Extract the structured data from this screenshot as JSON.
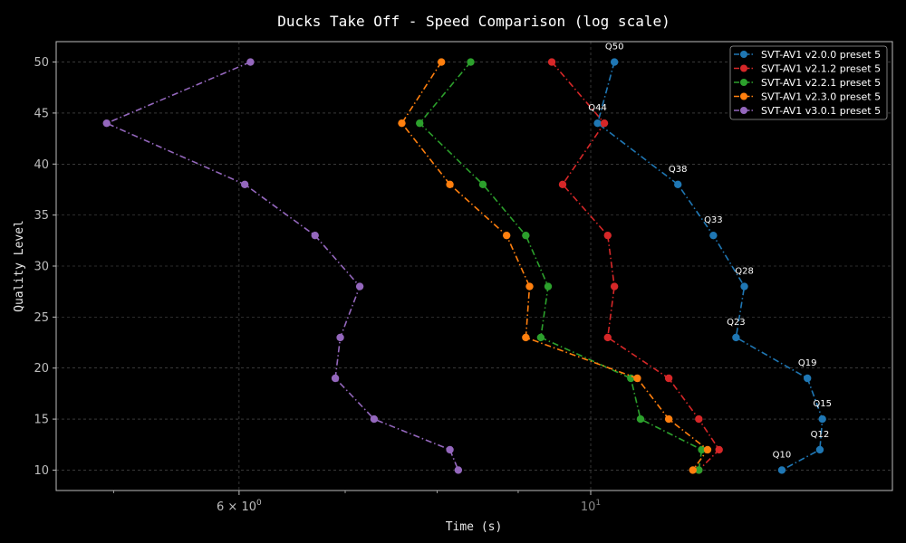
{
  "chart_data": {
    "type": "line",
    "title": "Ducks Take Off - Speed Comparison (log scale)",
    "xlabel": "Time (s)",
    "ylabel": "Quality Level",
    "x_scale": "log",
    "xlim": [
      4.6,
      15.5
    ],
    "ylim": [
      8,
      52
    ],
    "x_ticks": [
      {
        "value": 6,
        "label": "6 × 10^0",
        "muted": false
      },
      {
        "value": 10,
        "label": "10^1",
        "muted": true
      }
    ],
    "x_minor_ticks": [
      5,
      7,
      8,
      9
    ],
    "y_ticks": [
      10,
      15,
      20,
      25,
      30,
      35,
      40,
      45,
      50
    ],
    "grid": true,
    "legend_position": "top-right",
    "series": [
      {
        "name": "SVT-AV1 v2.0.0 preset 5",
        "color": "#1f77b4",
        "points": [
          {
            "x": 10.35,
            "y": 50
          },
          {
            "x": 10.1,
            "y": 44
          },
          {
            "x": 11.35,
            "y": 38
          },
          {
            "x": 11.95,
            "y": 33
          },
          {
            "x": 12.5,
            "y": 28
          },
          {
            "x": 12.35,
            "y": 23
          },
          {
            "x": 13.7,
            "y": 19
          },
          {
            "x": 14.0,
            "y": 15
          },
          {
            "x": 13.95,
            "y": 12
          },
          {
            "x": 13.2,
            "y": 10
          }
        ]
      },
      {
        "name": "SVT-AV1 v2.1.2 preset 5",
        "color": "#d62728",
        "points": [
          {
            "x": 9.45,
            "y": 50
          },
          {
            "x": 10.2,
            "y": 44
          },
          {
            "x": 9.6,
            "y": 38
          },
          {
            "x": 10.25,
            "y": 33
          },
          {
            "x": 10.35,
            "y": 28
          },
          {
            "x": 10.25,
            "y": 23
          },
          {
            "x": 11.2,
            "y": 19
          },
          {
            "x": 11.7,
            "y": 15
          },
          {
            "x": 12.05,
            "y": 12
          },
          {
            "x": 11.7,
            "y": 10
          }
        ]
      },
      {
        "name": "SVT-AV1 v2.2.1 preset 5",
        "color": "#2ca02c",
        "points": [
          {
            "x": 8.4,
            "y": 50
          },
          {
            "x": 7.8,
            "y": 44
          },
          {
            "x": 8.55,
            "y": 38
          },
          {
            "x": 9.1,
            "y": 33
          },
          {
            "x": 9.4,
            "y": 28
          },
          {
            "x": 9.3,
            "y": 23
          },
          {
            "x": 10.6,
            "y": 19
          },
          {
            "x": 10.75,
            "y": 15
          },
          {
            "x": 11.75,
            "y": 12
          },
          {
            "x": 11.7,
            "y": 10
          }
        ]
      },
      {
        "name": "SVT-AV1 v2.3.0 preset 5",
        "color": "#ff7f0e",
        "points": [
          {
            "x": 8.05,
            "y": 50
          },
          {
            "x": 7.6,
            "y": 44
          },
          {
            "x": 8.15,
            "y": 38
          },
          {
            "x": 8.85,
            "y": 33
          },
          {
            "x": 9.15,
            "y": 28
          },
          {
            "x": 9.1,
            "y": 23
          },
          {
            "x": 10.7,
            "y": 19
          },
          {
            "x": 11.2,
            "y": 15
          },
          {
            "x": 11.85,
            "y": 12
          },
          {
            "x": 11.6,
            "y": 10
          }
        ]
      },
      {
        "name": "SVT-AV1 v3.0.1 preset 5",
        "color": "#9467bd",
        "points": [
          {
            "x": 6.1,
            "y": 50
          },
          {
            "x": 4.95,
            "y": 44
          },
          {
            "x": 6.05,
            "y": 38
          },
          {
            "x": 6.7,
            "y": 33
          },
          {
            "x": 7.15,
            "y": 28
          },
          {
            "x": 6.95,
            "y": 23
          },
          {
            "x": 6.9,
            "y": 19
          },
          {
            "x": 7.3,
            "y": 15
          },
          {
            "x": 8.15,
            "y": 12
          },
          {
            "x": 8.25,
            "y": 10
          }
        ]
      }
    ],
    "annotations": [
      {
        "text": "Q50",
        "x": 10.35,
        "y": 50
      },
      {
        "text": "Q44",
        "x": 10.1,
        "y": 44
      },
      {
        "text": "Q38",
        "x": 11.35,
        "y": 38
      },
      {
        "text": "Q33",
        "x": 11.95,
        "y": 33
      },
      {
        "text": "Q28",
        "x": 12.5,
        "y": 28
      },
      {
        "text": "Q23",
        "x": 12.35,
        "y": 23
      },
      {
        "text": "Q19",
        "x": 13.7,
        "y": 19
      },
      {
        "text": "Q15",
        "x": 14.0,
        "y": 15
      },
      {
        "text": "Q12",
        "x": 13.95,
        "y": 12
      },
      {
        "text": "Q10",
        "x": 13.2,
        "y": 10
      }
    ]
  }
}
